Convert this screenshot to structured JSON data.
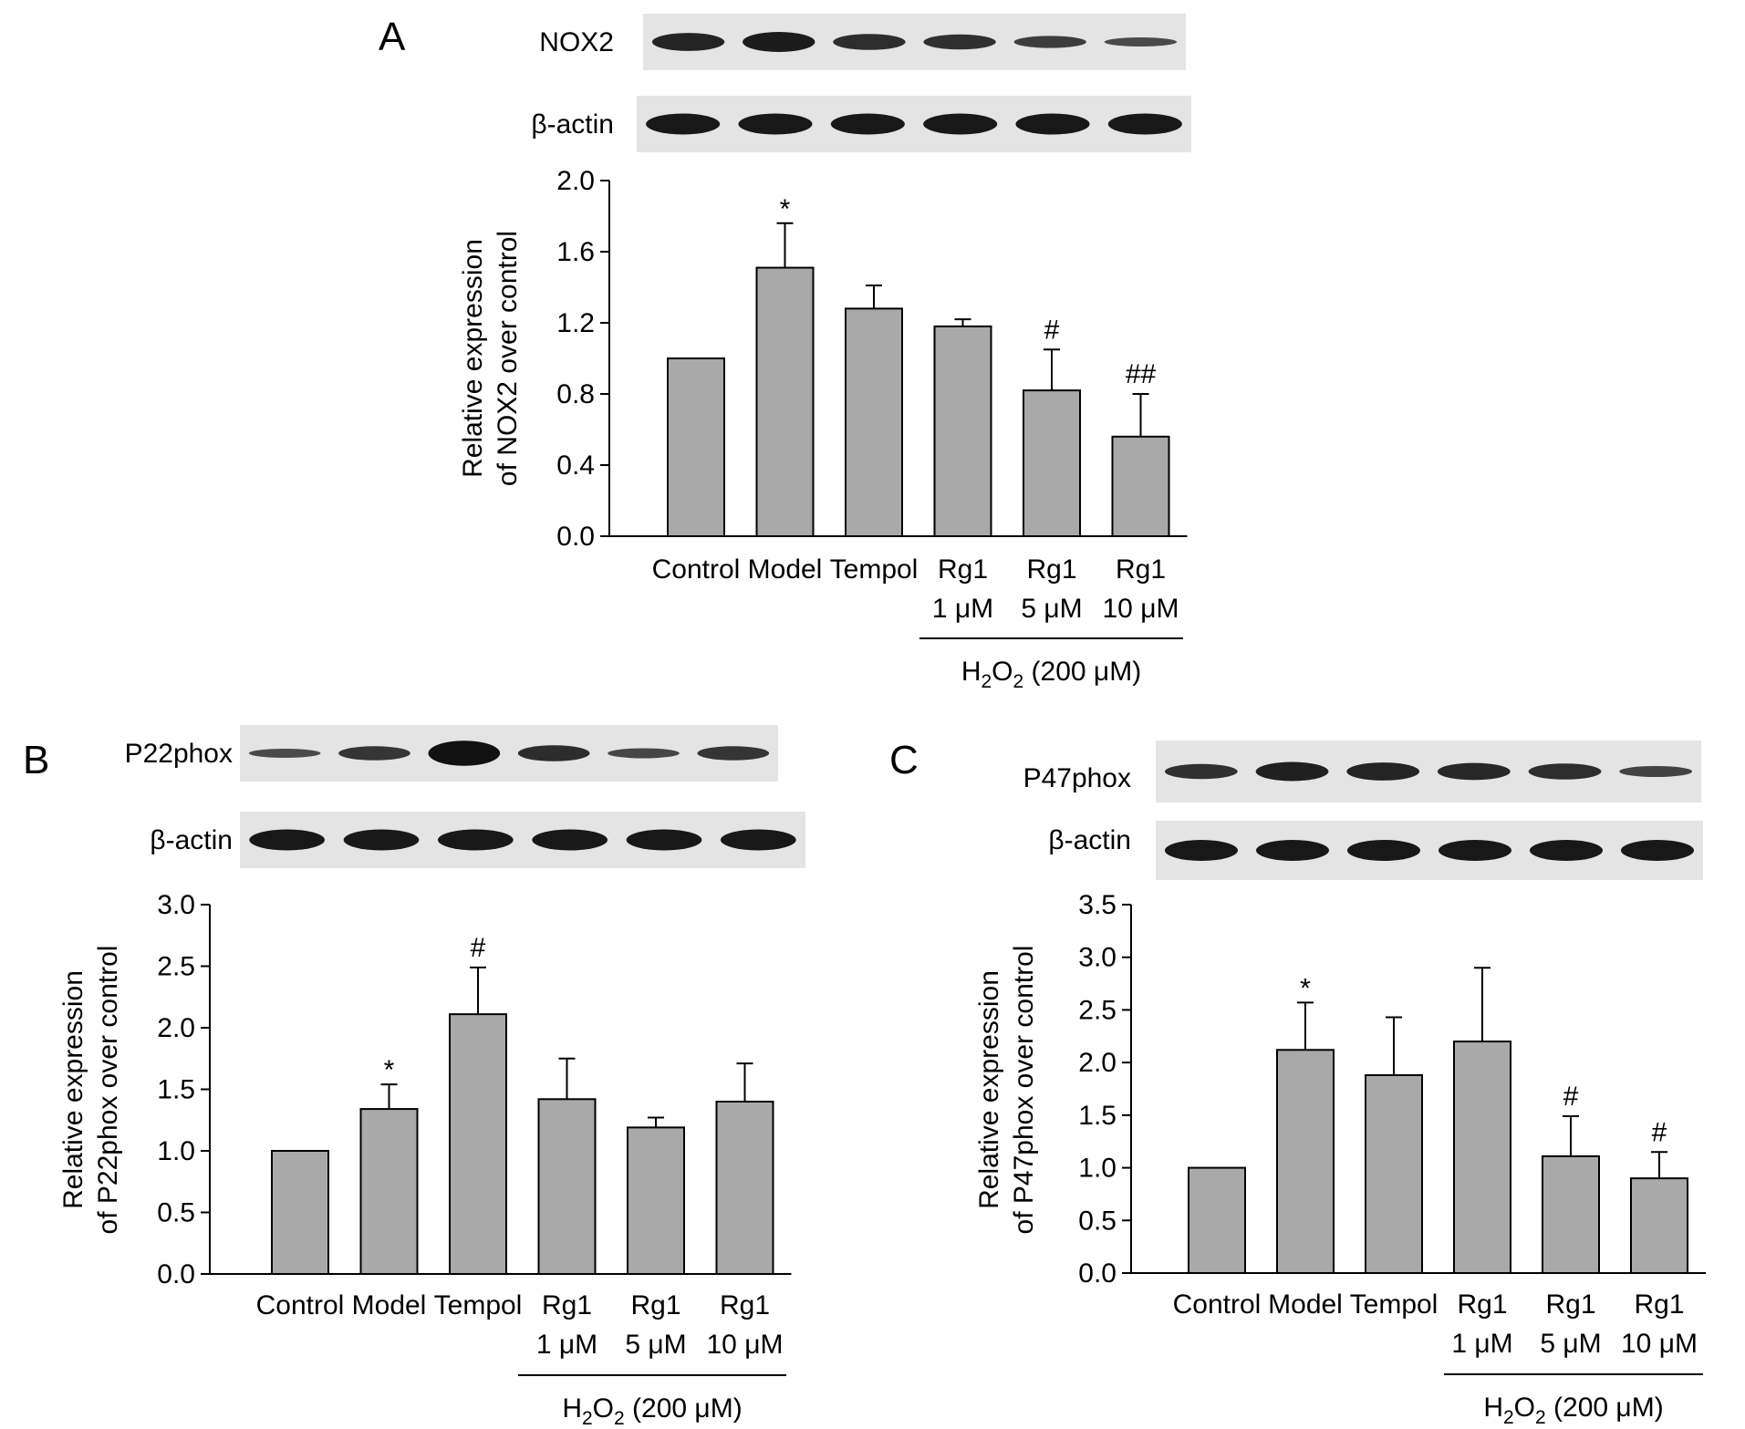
{
  "colors": {
    "bar": "#a9a9a9",
    "axis": "#000000",
    "blot_bg": "#e4e4e4",
    "band": "#111111"
  },
  "chart_data": [
    {
      "panel": "A",
      "type": "bar",
      "blot_labels": [
        "NOX2",
        "β-actin"
      ],
      "categories": [
        [
          "Control",
          ""
        ],
        [
          "Model",
          ""
        ],
        [
          "Tempol",
          ""
        ],
        [
          "Rg1",
          "1 μM"
        ],
        [
          "Rg1",
          "5 μM"
        ],
        [
          "Rg1",
          "10 μM"
        ]
      ],
      "values": [
        1.0,
        1.51,
        1.28,
        1.18,
        0.82,
        0.56
      ],
      "errors": [
        0,
        0.25,
        0.13,
        0.04,
        0.23,
        0.24
      ],
      "significance": [
        "",
        "*",
        "",
        "",
        "#",
        "##"
      ],
      "ylabel_lines": [
        "Relative expression",
        "of NOX2 over control"
      ],
      "ylim": [
        0,
        2.0
      ],
      "yticks": [
        "0.0",
        "0.4",
        "0.8",
        "1.2",
        "1.6",
        "2.0"
      ],
      "treatment": {
        "prefix": "H",
        "sub1": "2",
        "mid": "O",
        "sub2": "2",
        "suffix": " (200 μM)"
      }
    },
    {
      "panel": "B",
      "type": "bar",
      "blot_labels": [
        "P22phox",
        "β-actin"
      ],
      "categories": [
        [
          "Control",
          ""
        ],
        [
          "Model",
          ""
        ],
        [
          "Tempol",
          ""
        ],
        [
          "Rg1",
          "1 μM"
        ],
        [
          "Rg1",
          "5 μM"
        ],
        [
          "Rg1",
          "10 μM"
        ]
      ],
      "values": [
        1.0,
        1.34,
        2.11,
        1.42,
        1.19,
        1.4
      ],
      "errors": [
        0,
        0.2,
        0.38,
        0.33,
        0.08,
        0.31
      ],
      "significance": [
        "",
        "*",
        "#",
        "",
        "",
        ""
      ],
      "ylabel_lines": [
        "Relative expression",
        "of P22phox over control"
      ],
      "ylim": [
        0,
        3.0
      ],
      "yticks": [
        "0.0",
        "0.5",
        "1.0",
        "1.5",
        "2.0",
        "2.5",
        "3.0"
      ],
      "treatment": {
        "prefix": "H",
        "sub1": "2",
        "mid": "O",
        "sub2": "2",
        "suffix": " (200 μM)"
      }
    },
    {
      "panel": "C",
      "type": "bar",
      "blot_labels": [
        "P47phox",
        "β-actin"
      ],
      "categories": [
        [
          "Control",
          ""
        ],
        [
          "Model",
          ""
        ],
        [
          "Tempol",
          ""
        ],
        [
          "Rg1",
          "1 μM"
        ],
        [
          "Rg1",
          "5 μM"
        ],
        [
          "Rg1",
          "10 μM"
        ]
      ],
      "values": [
        1.0,
        2.12,
        1.88,
        2.2,
        1.11,
        0.9
      ],
      "errors": [
        0,
        0.45,
        0.55,
        0.7,
        0.38,
        0.25
      ],
      "significance": [
        "",
        "*",
        "",
        "",
        "#",
        "#"
      ],
      "ylabel_lines": [
        "Relative expression",
        "of P47phox over control"
      ],
      "ylim": [
        0,
        3.5
      ],
      "yticks": [
        "0.0",
        "0.5",
        "1.0",
        "1.5",
        "2.0",
        "2.5",
        "3.0",
        "3.5"
      ],
      "treatment": {
        "prefix": "H",
        "sub1": "2",
        "mid": "O",
        "sub2": "2",
        "suffix": " (200 μM)"
      }
    }
  ]
}
